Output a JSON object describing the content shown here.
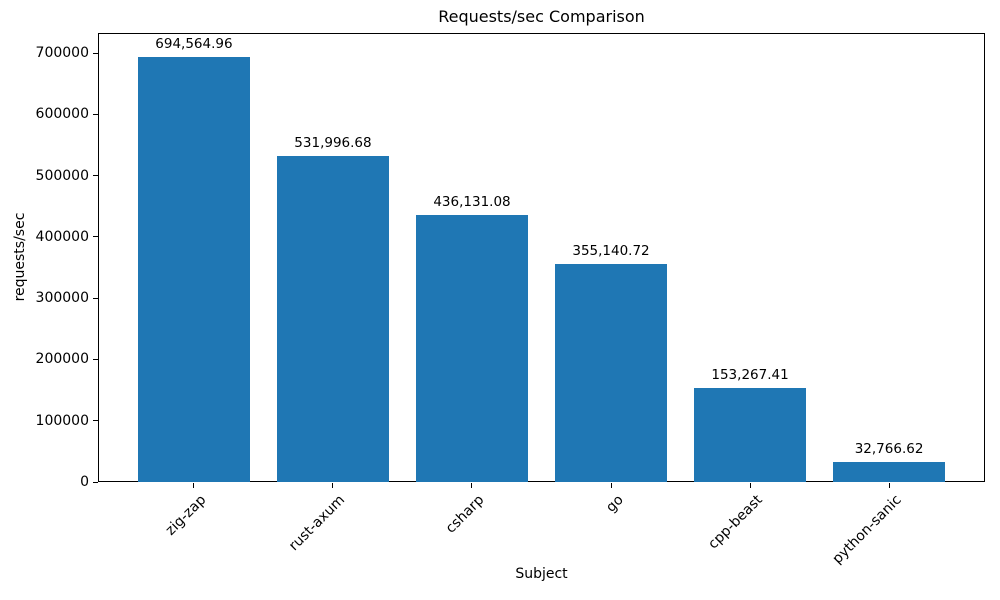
{
  "chart_data": {
    "type": "bar",
    "title": "Requests/sec Comparison",
    "xlabel": "Subject",
    "ylabel": "requests/sec",
    "categories": [
      "zig-zap",
      "rust-axum",
      "csharp",
      "go",
      "cpp-beast",
      "python-sanic"
    ],
    "values": [
      694564.96,
      531996.68,
      436131.08,
      355140.72,
      153267.41,
      32766.62
    ],
    "value_labels": [
      "694,564.96",
      "531,996.68",
      "436,131.08",
      "355,140.72",
      "153,267.41",
      "32,766.62"
    ],
    "yticks": [
      0,
      100000,
      200000,
      300000,
      400000,
      500000,
      600000,
      700000
    ],
    "ylim": [
      0,
      733000
    ],
    "bar_color": "#1f77b4",
    "axis_color": "#000000",
    "grid": false,
    "legend_position": "none"
  }
}
